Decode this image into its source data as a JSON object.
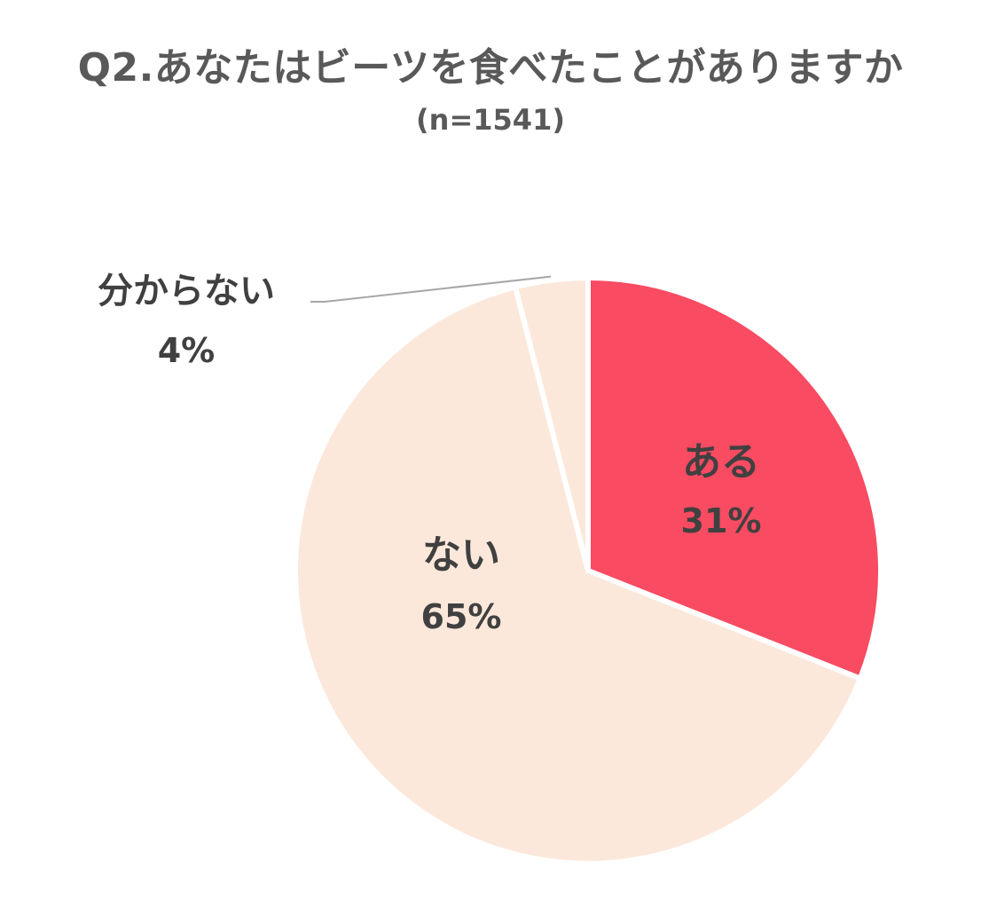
{
  "chart_data": {
    "type": "pie",
    "title": "Q2.あなたはビーツを食べたことがありますか",
    "subtitle": "(n=1541)",
    "slices": [
      {
        "label": "ある",
        "value": 31,
        "value_label": "31%",
        "color": "#F94B62"
      },
      {
        "label": "ない",
        "value": 65,
        "value_label": "65%",
        "color": "#FCE8DB"
      },
      {
        "label": "分からない",
        "value": 4,
        "value_label": "4%",
        "color": "#FCE8DB"
      }
    ],
    "start": "12 o'clock",
    "direction": "clockwise",
    "legend": "none",
    "slice_separator_color": "#FFFFFF",
    "leader_line_color": "#A6A6A6"
  }
}
